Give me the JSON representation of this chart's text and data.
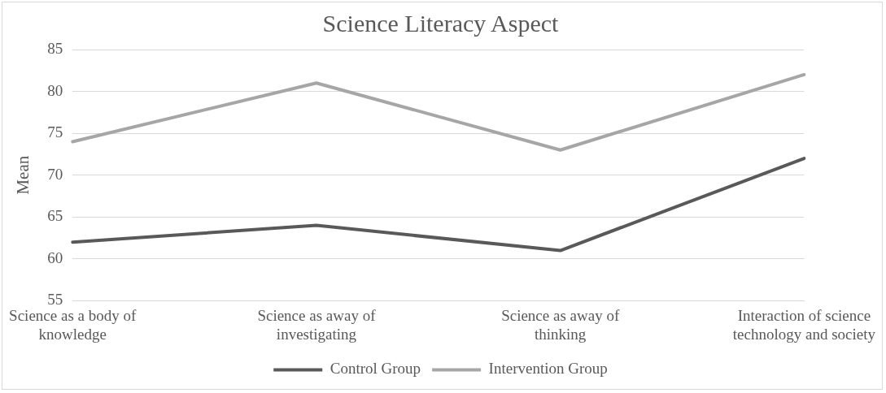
{
  "chart_data": {
    "type": "line",
    "title": "Science Literacy Aspect",
    "ylabel": "Mean",
    "categories": [
      "Science as a body of knowledge",
      "Science as away of investigating",
      "Science as away of thinking",
      "Interaction of science technology and society"
    ],
    "series": [
      {
        "name": "Control Group",
        "color": "#595959",
        "values": [
          62,
          64,
          61,
          72
        ]
      },
      {
        "name": "Intervention Group",
        "color": "#a6a6a6",
        "values": [
          74,
          81,
          73,
          82
        ]
      }
    ],
    "ylim": [
      55,
      85
    ],
    "yticks": [
      55,
      60,
      65,
      70,
      75,
      80,
      85
    ],
    "grid": "y",
    "legend": "bottom",
    "marker": "none",
    "line_style": "solid"
  }
}
